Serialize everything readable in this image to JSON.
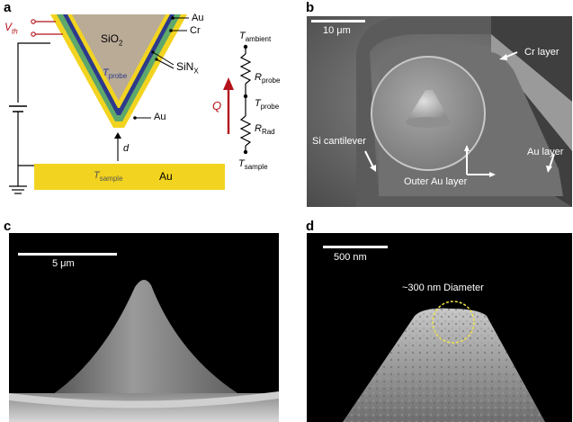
{
  "panels": {
    "a": {
      "letter": "a",
      "labels": {
        "vth": "V",
        "vth_sub": "th",
        "sio2": "SiO",
        "sio2_sub": "2",
        "au_top": "Au",
        "cr": "Cr",
        "sinx": "SiN",
        "sinx_sub": "X",
        "au_tip": "Au",
        "t_probe": "T",
        "t_probe_sub": "probe",
        "d": "d",
        "t_sample": "T",
        "t_sample_sub": "sample",
        "au_sample": "Au"
      },
      "circuit": {
        "t_ambient": "T",
        "t_ambient_sub": "ambient",
        "r_probe": "R",
        "r_probe_sub": "probe",
        "t_probe": "T",
        "t_probe_sub": "probe",
        "r_rad": "R",
        "r_rad_sub": "Rad",
        "t_sample": "T",
        "t_sample_sub": "sample",
        "q": "Q"
      },
      "colors": {
        "sio2": "#b9ab96",
        "sinx": "#2d3a8c",
        "cr": "#5ea86b",
        "au": "#f2d420",
        "sample": "#f2d420",
        "accent": "#b5121b"
      }
    },
    "b": {
      "letter": "b",
      "scalebar": "10 μm",
      "cr_layer": "Cr layer",
      "si_cantilever": "Si cantilever",
      "au_layer": "Au layer",
      "outer_au_layer": "Outer Au layer"
    },
    "c": {
      "letter": "c",
      "scalebar": "5 μm"
    },
    "d": {
      "letter": "d",
      "scalebar": "500 nm",
      "diameter": "~300 nm Diameter"
    }
  }
}
